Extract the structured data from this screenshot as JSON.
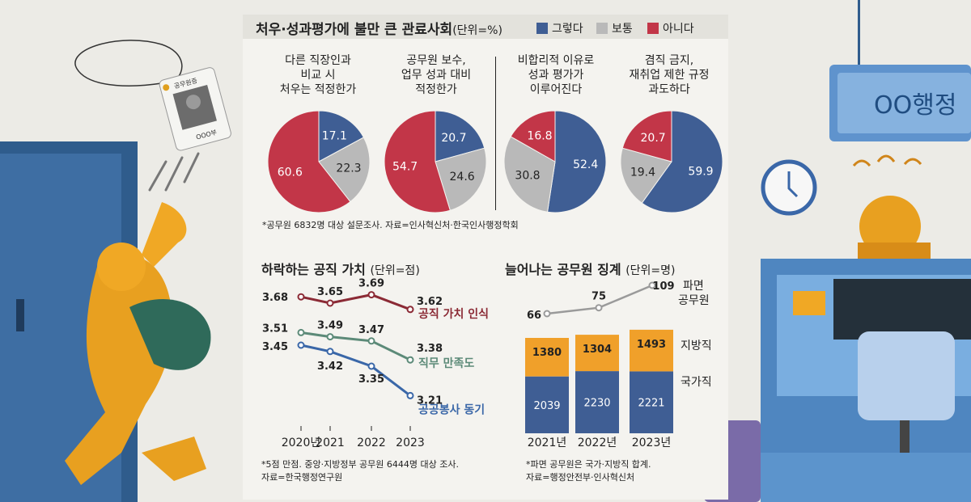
{
  "header": {
    "title": "처우·성과평가에 불만 큰 관료사회",
    "unit": "(단위=%)",
    "legend": [
      {
        "label": "그렇다",
        "color": "#3f5e94"
      },
      {
        "label": "보통",
        "color": "#b9b9b9"
      },
      {
        "label": "아니다",
        "color": "#c23648"
      }
    ]
  },
  "illustration": {
    "badge_org": "공무원증",
    "badge_name": "OOO부",
    "office_sign": "OO행정"
  },
  "chart_data": [
    {
      "type": "pie",
      "title": "처우·성과평가에 불만 큰 관료사회",
      "unit": "%",
      "series_names": [
        "그렇다",
        "보통",
        "아니다"
      ],
      "pies": [
        {
          "question": [
            "다른 직장인과",
            "비교 시",
            "처우는 적정한가"
          ],
          "values": [
            17.1,
            22.3,
            60.6
          ]
        },
        {
          "question": [
            "공무원 보수,",
            "업무 성과 대비",
            "적정한가"
          ],
          "values": [
            20.7,
            24.6,
            54.7
          ]
        },
        {
          "question": [
            "비합리적 이유로",
            "성과 평가가",
            "이루어진다"
          ],
          "values": [
            52.4,
            30.8,
            16.8
          ]
        },
        {
          "question": [
            "겸직 금지,",
            "재취업 제한 규정",
            "과도하다"
          ],
          "values": [
            59.9,
            19.4,
            20.7
          ]
        }
      ],
      "labels": [
        "17.1",
        "22.3",
        "60.6",
        "20.7",
        "24.6",
        "54.7",
        "52.4",
        "30.8",
        "16.8",
        "59.9",
        "19.4",
        "20.7"
      ],
      "note": "*공무원 6832명 대상 설문조사. 자료=인사혁신처·한국인사행정학회"
    },
    {
      "type": "line",
      "title": "하락하는 공직 가치",
      "unit": "(단위=점)",
      "x": [
        "2020년",
        "2021",
        "2022",
        "2023"
      ],
      "series": [
        {
          "name": "공직 가치 인식",
          "values": [
            3.68,
            3.65,
            3.69,
            3.62
          ],
          "labels": [
            "3.68",
            "3.65",
            "3.69",
            "3.62"
          ],
          "color": "#8b2a35"
        },
        {
          "name": "직무 만족도",
          "values": [
            3.51,
            3.49,
            3.47,
            3.38
          ],
          "labels": [
            "3.51",
            "3.49",
            "3.47",
            "3.38"
          ],
          "color": "#5c8a78"
        },
        {
          "name": "공공봉사 동기",
          "values": [
            3.45,
            3.42,
            3.35,
            3.21
          ],
          "labels": [
            "3.45",
            "3.42",
            "3.35",
            "3.21"
          ],
          "color": "#3a67a8"
        }
      ],
      "note": [
        "*5점 만점. 중앙·지방정부 공무원 6444명 대상 조사.",
        "자료=한국행정연구원"
      ]
    },
    {
      "type": "bar",
      "title": "늘어나는 공무원 징계",
      "unit": "(단위=명)",
      "categories": [
        "2021년",
        "2022년",
        "2023년"
      ],
      "series": [
        {
          "name": "국가직",
          "values": [
            2039,
            2230,
            2221
          ],
          "labels": [
            "2039",
            "2230",
            "2221"
          ],
          "color": "#3f5e94"
        },
        {
          "name": "지방직",
          "values": [
            1380,
            1304,
            1493
          ],
          "labels": [
            "1380",
            "1304",
            "1493"
          ],
          "color": "#f0a02a"
        }
      ],
      "line": {
        "name": "파면 공무원",
        "name_lines": [
          "파면",
          "공무원"
        ],
        "values": [
          66,
          75,
          109
        ],
        "labels": [
          "66",
          "75",
          "109"
        ],
        "color": "#9a9a9a"
      },
      "note": [
        "*파면 공무원은 국가·지방직 합계.",
        "자료=행정안전부·인사혁신처"
      ]
    }
  ]
}
